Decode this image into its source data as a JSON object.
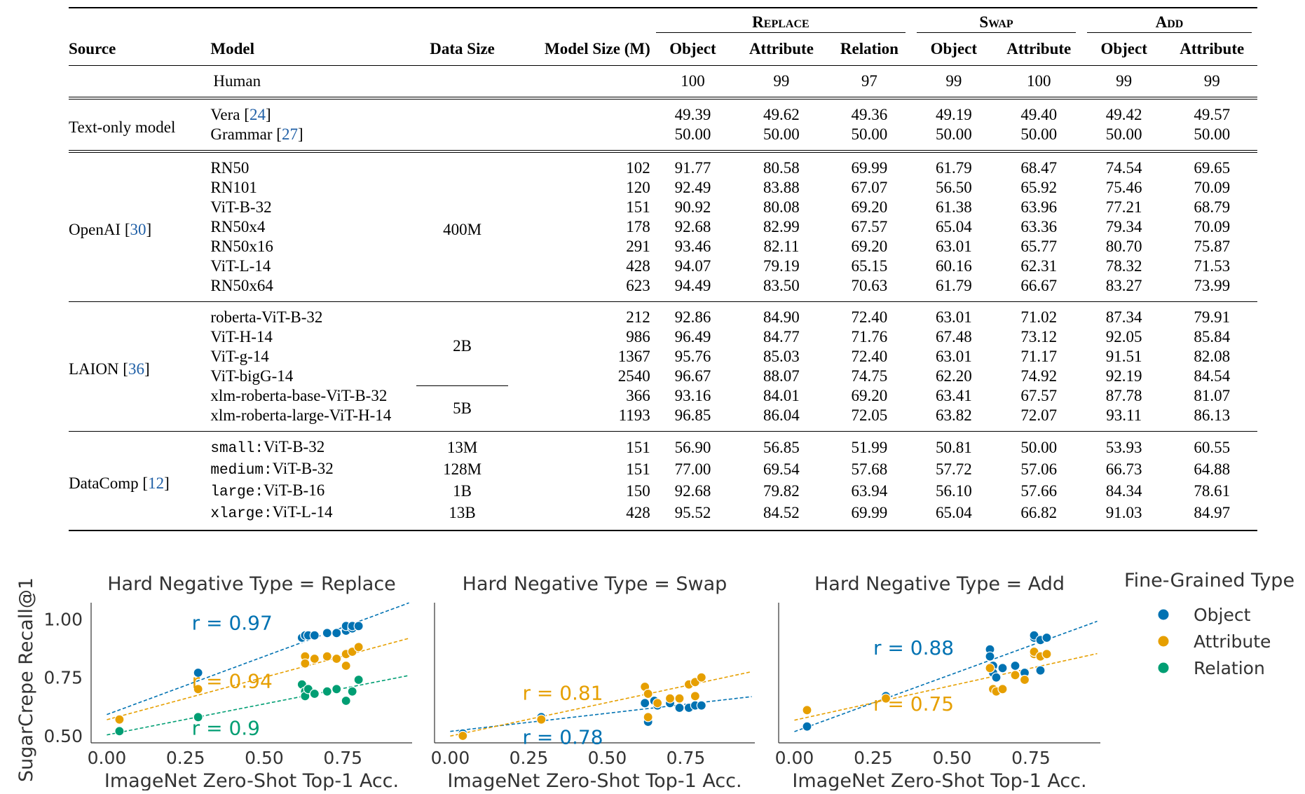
{
  "table": {
    "group_headers": [
      {
        "label": "Replace",
        "span": 3
      },
      {
        "label": "Swap",
        "span": 2
      },
      {
        "label": "Add",
        "span": 2
      }
    ],
    "headers": [
      "Source",
      "Model",
      "Data Size",
      "Model Size (M)",
      "Object",
      "Attribute",
      "Relation",
      "Object",
      "Attribute",
      "Object",
      "Attribute"
    ],
    "human": {
      "label": "Human",
      "values": [
        "100",
        "99",
        "97",
        "99",
        "100",
        "99",
        "99"
      ]
    },
    "sections": [
      {
        "source": "Text-only model",
        "rows": [
          {
            "model": "Vera",
            "cite": "24",
            "size": "",
            "values": [
              "49.39",
              "49.62",
              "49.36",
              "49.19",
              "49.40",
              "49.42",
              "49.57"
            ]
          },
          {
            "model": "Grammar",
            "cite": "27",
            "size": "",
            "values": [
              "50.00",
              "50.00",
              "50.00",
              "50.00",
              "50.00",
              "50.00",
              "50.00"
            ]
          }
        ]
      },
      {
        "source": "OpenAI",
        "source_cite": "30",
        "data_size": "400M",
        "rows": [
          {
            "model": "RN50",
            "size": "102",
            "values": [
              "91.77",
              "80.58",
              "69.99",
              "61.79",
              "68.47",
              "74.54",
              "69.65"
            ]
          },
          {
            "model": "RN101",
            "size": "120",
            "values": [
              "92.49",
              "83.88",
              "67.07",
              "56.50",
              "65.92",
              "75.46",
              "70.09"
            ]
          },
          {
            "model": "ViT-B-32",
            "size": "151",
            "values": [
              "90.92",
              "80.08",
              "69.20",
              "61.38",
              "63.96",
              "77.21",
              "68.79"
            ]
          },
          {
            "model": "RN50x4",
            "size": "178",
            "values": [
              "92.68",
              "82.99",
              "67.57",
              "65.04",
              "63.36",
              "79.34",
              "70.09"
            ]
          },
          {
            "model": "RN50x16",
            "size": "291",
            "values": [
              "93.46",
              "82.11",
              "69.20",
              "63.01",
              "65.77",
              "80.70",
              "75.87"
            ]
          },
          {
            "model": "ViT-L-14",
            "size": "428",
            "values": [
              "94.07",
              "79.19",
              "65.15",
              "60.16",
              "62.31",
              "78.32",
              "71.53"
            ]
          },
          {
            "model": "RN50x64",
            "size": "623",
            "values": [
              "94.49",
              "83.50",
              "70.63",
              "61.79",
              "66.67",
              "83.27",
              "73.99"
            ]
          }
        ]
      },
      {
        "source": "LAION",
        "source_cite": "36",
        "data_size_a": "2B",
        "data_size_b": "5B",
        "rows": [
          {
            "model": "roberta-ViT-B-32",
            "size": "212",
            "values": [
              "92.86",
              "84.90",
              "72.40",
              "63.01",
              "71.02",
              "87.34",
              "79.91"
            ]
          },
          {
            "model": "ViT-H-14",
            "size": "986",
            "values": [
              "96.49",
              "84.77",
              "71.76",
              "67.48",
              "73.12",
              "92.05",
              "85.84"
            ]
          },
          {
            "model": "ViT-g-14",
            "size": "1367",
            "values": [
              "95.76",
              "85.03",
              "72.40",
              "63.01",
              "71.17",
              "91.51",
              "82.08"
            ]
          },
          {
            "model": "ViT-bigG-14",
            "size": "2540",
            "values": [
              "96.67",
              "88.07",
              "74.75",
              "62.20",
              "74.92",
              "92.19",
              "84.54"
            ]
          },
          {
            "model": "xlm-roberta-base-ViT-B-32",
            "size": "366",
            "values": [
              "93.16",
              "84.01",
              "69.20",
              "63.41",
              "67.57",
              "87.78",
              "81.07"
            ]
          },
          {
            "model": "xlm-roberta-large-ViT-H-14",
            "size": "1193",
            "values": [
              "96.85",
              "86.04",
              "72.05",
              "63.82",
              "72.07",
              "93.11",
              "86.13"
            ]
          }
        ]
      },
      {
        "source": "DataComp",
        "source_cite": "12",
        "rows": [
          {
            "prefix": "small:",
            "model": "ViT-B-32",
            "data": "13M",
            "size": "151",
            "values": [
              "56.90",
              "56.85",
              "51.99",
              "50.81",
              "50.00",
              "53.93",
              "60.55"
            ]
          },
          {
            "prefix": "medium:",
            "model": "ViT-B-32",
            "data": "128M",
            "size": "151",
            "values": [
              "77.00",
              "69.54",
              "57.68",
              "57.72",
              "57.06",
              "66.73",
              "64.88"
            ]
          },
          {
            "prefix": "large:",
            "model": "ViT-B-16",
            "data": "1B",
            "size": "150",
            "values": [
              "92.68",
              "79.82",
              "63.94",
              "56.10",
              "57.66",
              "84.34",
              "78.61"
            ]
          },
          {
            "prefix": "xlarge:",
            "model": "ViT-L-14",
            "data": "13B",
            "size": "428",
            "values": [
              "95.52",
              "84.52",
              "69.99",
              "65.04",
              "66.82",
              "91.03",
              "84.97"
            ]
          }
        ]
      }
    ]
  },
  "chart_data": [
    {
      "type": "scatter",
      "title": "Hard Negative Type = Replace",
      "xlabel": "ImageNet Zero-Shot Top-1 Acc.",
      "ylabel": "SugarCrepe Recall@1",
      "xlim": [
        -0.05,
        0.97
      ],
      "ylim": [
        0.47,
        1.07
      ],
      "xticks": [
        "0.00",
        "0.25",
        "0.50",
        "0.75"
      ],
      "yticks": [
        "0.50",
        "0.75",
        "1.00"
      ],
      "series": [
        {
          "name": "Object",
          "color": "#0072b2",
          "x": [
            0.29,
            0.62,
            0.63,
            0.63,
            0.64,
            0.66,
            0.7,
            0.73,
            0.76,
            0.76,
            0.78,
            0.78,
            0.8
          ],
          "y": [
            0.77,
            0.92,
            0.93,
            0.93,
            0.93,
            0.93,
            0.94,
            0.94,
            0.95,
            0.97,
            0.96,
            0.97,
            0.97
          ],
          "r_label": "r = 0.97",
          "fit": [
            0.591,
            0.498
          ]
        },
        {
          "name": "Attribute",
          "color": "#e69f00",
          "x": [
            0.04,
            0.29,
            0.63,
            0.63,
            0.66,
            0.7,
            0.73,
            0.76,
            0.76,
            0.78,
            0.8
          ],
          "y": [
            0.57,
            0.7,
            0.84,
            0.81,
            0.83,
            0.84,
            0.83,
            0.8,
            0.85,
            0.86,
            0.88
          ],
          "r_label": "r = 0.94",
          "fit": [
            0.569,
            0.363
          ]
        },
        {
          "name": "Relation",
          "color": "#009e73",
          "x": [
            0.04,
            0.29,
            0.62,
            0.63,
            0.63,
            0.64,
            0.66,
            0.7,
            0.73,
            0.76,
            0.78,
            0.8
          ],
          "y": [
            0.52,
            0.58,
            0.72,
            0.69,
            0.67,
            0.7,
            0.68,
            0.69,
            0.7,
            0.65,
            0.69,
            0.74
          ],
          "r_label": "r = 0.9",
          "fit": [
            0.504,
            0.265
          ]
        }
      ]
    },
    {
      "type": "scatter",
      "title": "Hard Negative Type = Swap",
      "xlabel": "ImageNet Zero-Shot Top-1 Acc.",
      "xlim": [
        -0.05,
        0.97
      ],
      "ylim": [
        0.47,
        1.07
      ],
      "xticks": [
        "0.00",
        "0.25",
        "0.50",
        "0.75"
      ],
      "series": [
        {
          "name": "Object",
          "color": "#0072b2",
          "x": [
            0.04,
            0.29,
            0.62,
            0.63,
            0.63,
            0.65,
            0.66,
            0.7,
            0.73,
            0.76,
            0.78,
            0.78,
            0.8
          ],
          "y": [
            0.51,
            0.58,
            0.64,
            0.57,
            0.56,
            0.65,
            0.63,
            0.64,
            0.62,
            0.62,
            0.63,
            0.67,
            0.63
          ],
          "r_label": "r = 0.78",
          "fit": [
            0.519,
            0.155
          ]
        },
        {
          "name": "Attribute",
          "color": "#e69f00",
          "x": [
            0.04,
            0.29,
            0.62,
            0.63,
            0.63,
            0.66,
            0.7,
            0.73,
            0.76,
            0.78,
            0.78,
            0.8
          ],
          "y": [
            0.5,
            0.57,
            0.71,
            0.68,
            0.58,
            0.64,
            0.66,
            0.66,
            0.72,
            0.73,
            0.67,
            0.75
          ],
          "r_label": "r = 0.81",
          "fit": [
            0.499,
            0.287
          ]
        }
      ]
    },
    {
      "type": "scatter",
      "title": "Hard Negative Type = Add",
      "xlabel": "ImageNet Zero-Shot Top-1 Acc.",
      "xlim": [
        -0.05,
        0.97
      ],
      "ylim": [
        0.47,
        1.07
      ],
      "xticks": [
        "0.00",
        "0.25",
        "0.50",
        "0.75"
      ],
      "series": [
        {
          "name": "Object",
          "color": "#0072b2",
          "x": [
            0.04,
            0.29,
            0.62,
            0.62,
            0.63,
            0.63,
            0.64,
            0.66,
            0.7,
            0.73,
            0.76,
            0.76,
            0.78,
            0.78,
            0.8
          ],
          "y": [
            0.54,
            0.67,
            0.87,
            0.84,
            0.8,
            0.77,
            0.75,
            0.79,
            0.8,
            0.77,
            0.92,
            0.93,
            0.78,
            0.91,
            0.92
          ],
          "r_label": "r = 0.88",
          "fit": [
            0.518,
            0.492
          ]
        },
        {
          "name": "Attribute",
          "color": "#e69f00",
          "x": [
            0.04,
            0.29,
            0.62,
            0.63,
            0.64,
            0.66,
            0.7,
            0.73,
            0.76,
            0.76,
            0.78,
            0.8
          ],
          "y": [
            0.61,
            0.66,
            0.79,
            0.7,
            0.69,
            0.7,
            0.76,
            0.74,
            0.85,
            0.86,
            0.84,
            0.85
          ],
          "r_label": "r = 0.75",
          "fit": [
            0.567,
            0.297
          ]
        }
      ]
    }
  ],
  "legend": {
    "title": "Fine-Grained Type",
    "items": [
      {
        "label": "Object",
        "color": "#0072b2"
      },
      {
        "label": "Attribute",
        "color": "#e69f00"
      },
      {
        "label": "Relation",
        "color": "#009e73"
      }
    ]
  }
}
